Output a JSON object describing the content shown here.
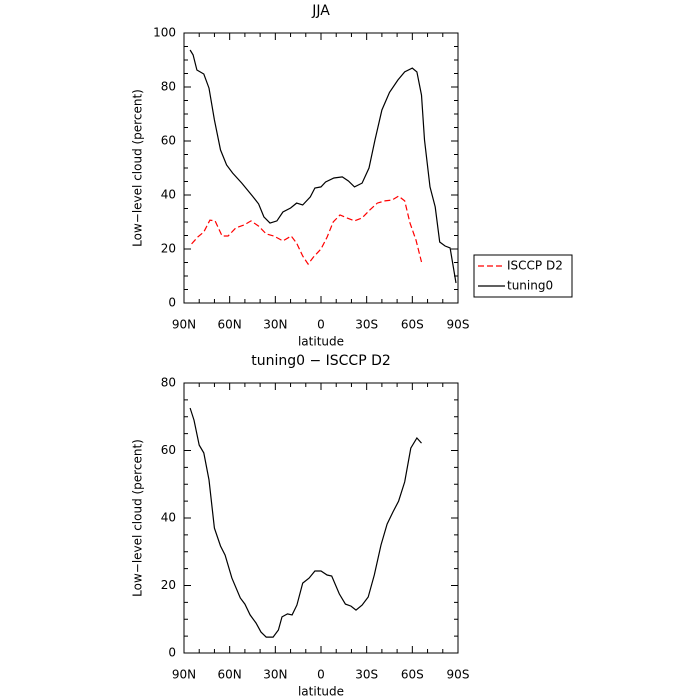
{
  "chart_data": [
    {
      "type": "line",
      "title": "JJA",
      "ylabel": "Low−level cloud (percent)",
      "xlabel": "latitude",
      "xlim": [
        90,
        -90
      ],
      "ylim": [
        0,
        100
      ],
      "xticks": [
        {
          "value": 90,
          "label": "90N"
        },
        {
          "value": 60,
          "label": "60N"
        },
        {
          "value": 30,
          "label": "30N"
        },
        0,
        {
          "value": -30,
          "label": "30S"
        },
        {
          "value": -60,
          "label": "60S"
        },
        {
          "value": -90,
          "label": "90S"
        }
      ],
      "yticks": [
        0,
        20,
        40,
        60,
        80,
        100
      ],
      "legend": "right",
      "series": [
        {
          "name": "ISCCP D2",
          "color": "#ff0000",
          "style": "dashed",
          "x": [
            85,
            81,
            77,
            73,
            69.6,
            65,
            61,
            56,
            50.6,
            46,
            41,
            36,
            31,
            25,
            19.6,
            16,
            12,
            8.5,
            5,
            0,
            -4,
            -8,
            -12.5,
            -17,
            -22,
            -27,
            -32,
            -37,
            -42,
            -46.6,
            -51,
            -55,
            -58.5,
            -62.4,
            -66
          ],
          "values": [
            21.9,
            24.4,
            26.3,
            30.7,
            30.4,
            24.8,
            24.8,
            27.8,
            28.9,
            30.4,
            28.5,
            25.6,
            24.8,
            23,
            24.8,
            22.2,
            17.4,
            14.4,
            17,
            20,
            24.4,
            30,
            32.6,
            31.5,
            30.4,
            31.5,
            34.4,
            37,
            37.8,
            38.1,
            39.6,
            37.8,
            29.6,
            23.3,
            15.2
          ]
        },
        {
          "name": "tuning0",
          "color": "#000000",
          "style": "solid",
          "x": [
            86,
            84,
            81.5,
            77,
            73.6,
            70,
            66,
            62,
            58,
            52,
            45,
            41,
            37.5,
            33.5,
            29,
            25,
            20,
            16,
            12,
            7,
            4,
            0,
            -3,
            -8.5,
            -14,
            -18,
            -22,
            -27,
            -31.5,
            -35.5,
            -40,
            -45,
            -50.5,
            -55,
            -60,
            -63,
            -66,
            -68,
            -71.6,
            -75,
            -78,
            -81.5,
            -84.8,
            -88.7
          ],
          "values": [
            93.7,
            91.9,
            86.3,
            84.8,
            79.6,
            67.8,
            56.7,
            51.1,
            48.1,
            44.4,
            39.6,
            36.7,
            31.9,
            29.6,
            30.4,
            33.7,
            35.2,
            37,
            36.3,
            39.3,
            42.6,
            43,
            44.8,
            46.3,
            46.7,
            45.2,
            43,
            44.4,
            50,
            60.4,
            71.5,
            78,
            82.6,
            85.6,
            87,
            85.6,
            77,
            60.4,
            43,
            35.6,
            22.6,
            21.1,
            20.4,
            7.4
          ]
        }
      ]
    },
    {
      "type": "line",
      "title": "tuning0 − ISCCP D2",
      "ylabel": "Low−level cloud (percent)",
      "xlabel": "latitude",
      "xlim": [
        90,
        -90
      ],
      "ylim": [
        0,
        80
      ],
      "xticks": [
        {
          "value": 90,
          "label": "90N"
        },
        {
          "value": 60,
          "label": "60N"
        },
        {
          "value": 30,
          "label": "30N"
        },
        0,
        {
          "value": -30,
          "label": "30S"
        },
        {
          "value": -60,
          "label": "60S"
        },
        {
          "value": -90,
          "label": "90S"
        }
      ],
      "yticks": [
        0,
        20,
        40,
        60,
        80
      ],
      "series": [
        {
          "color": "#000000",
          "style": "solid",
          "x": [
            86,
            83.4,
            80,
            77,
            73.6,
            70,
            66,
            63,
            58.5,
            53,
            50,
            46.6,
            42.7,
            39.4,
            36,
            31.5,
            28,
            25.6,
            22,
            19,
            15.8,
            12,
            7.8,
            4,
            0,
            -4,
            -7,
            -12,
            -16,
            -19.7,
            -23,
            -27,
            -31,
            -35,
            -39.4,
            -43.4,
            -47.3,
            -51,
            -55,
            -59,
            -63,
            -66
          ],
          "values": [
            72.6,
            69,
            61.6,
            59.3,
            51.3,
            37,
            31.7,
            29,
            22.2,
            16.3,
            14.5,
            11.3,
            8.9,
            6.2,
            4.7,
            4.7,
            6.8,
            10.7,
            11.6,
            11.3,
            14.2,
            20.7,
            22.2,
            24.3,
            24.3,
            23.1,
            22.8,
            17.5,
            14.5,
            13.9,
            12.7,
            14.2,
            16.6,
            23.1,
            32,
            38.2,
            41.8,
            45,
            50.7,
            60.7,
            63.7,
            62.2
          ]
        }
      ]
    }
  ]
}
